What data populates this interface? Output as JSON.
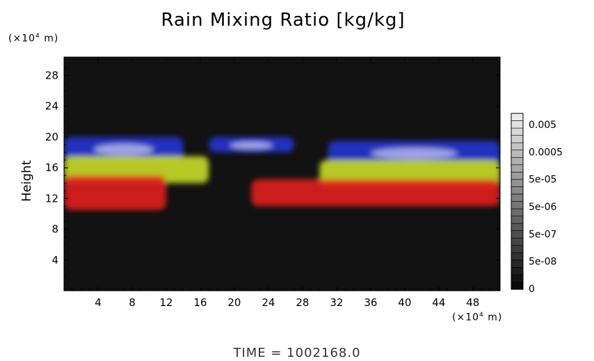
{
  "title": "Rain Mixing Ratio [kg/kg]",
  "time_label": "TIME  =  1002168.0",
  "y_unit": {
    "prefix": "(×10",
    "exp": "4",
    "suffix": " m)"
  },
  "x_unit": {
    "prefix": "(×10",
    "exp": "4",
    "suffix": " m)"
  },
  "colors": {
    "background": "#111111",
    "red": "#e01e1e",
    "yellow": "#c8dc28",
    "blue": "#2634d0",
    "white": "#f0f0ff"
  },
  "chart_data": {
    "type": "heatmap",
    "title": "Rain Mixing Ratio [kg/kg]",
    "xlabel": "",
    "ylabel": "Height",
    "x_unit": "(×10⁴ m)",
    "y_unit": "(×10⁴ m)",
    "xlim": [
      0,
      51.2
    ],
    "ylim": [
      0,
      30.4
    ],
    "xticks": [
      "4",
      "8",
      "12",
      "16",
      "20",
      "24",
      "28",
      "32",
      "36",
      "40",
      "44",
      "48"
    ],
    "yticks": [
      "4",
      "8",
      "12",
      "16",
      "20",
      "24",
      "28"
    ],
    "colorbar": {
      "labels": [
        "0.005",
        "0.0005",
        "5e-05",
        "5e-06",
        "5e-07",
        "5e-08",
        "0"
      ]
    },
    "features": [
      {
        "band": "red",
        "x": [
          0,
          12
        ],
        "y": [
          10.5,
          15
        ]
      },
      {
        "band": "yellow",
        "x": [
          0,
          17
        ],
        "y": [
          14,
          17.5
        ]
      },
      {
        "band": "blue",
        "x": [
          0,
          14
        ],
        "y": [
          17,
          20
        ]
      },
      {
        "band": "blue",
        "x": [
          17,
          27
        ],
        "y": [
          18,
          20
        ]
      },
      {
        "band": "red",
        "x": [
          22,
          51.2
        ],
        "y": [
          11,
          14.5
        ]
      },
      {
        "band": "yellow",
        "x": [
          30,
          51.2
        ],
        "y": [
          13.5,
          17
        ]
      },
      {
        "band": "blue",
        "x": [
          31,
          51.2
        ],
        "y": [
          16.5,
          19.5
        ]
      }
    ]
  }
}
